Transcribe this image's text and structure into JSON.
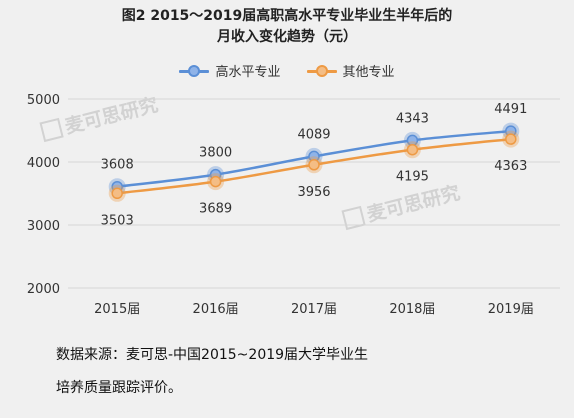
{
  "title_lines": [
    "图2 2015～2019届高职高水平专业毕业生半年后的",
    "月收入变化趋势（元）"
  ],
  "source_lines": [
    "数据来源：麦可思-中国2015~2019届大学毕业生",
    "培养质量跟踪评价。"
  ],
  "watermark": "麦可思研究",
  "colors": {
    "series_a": "#5b8fd6",
    "series_b": "#ee9a44",
    "grid": "#d6d6d6",
    "text": "#333333"
  },
  "chart_data": {
    "type": "line",
    "title": "图2 2015～2019届高职高水平专业毕业生半年后的月收入变化趋势（元）",
    "categories": [
      "2015届",
      "2016届",
      "2017届",
      "2018届",
      "2019届"
    ],
    "series": [
      {
        "name": "高水平专业",
        "values": [
          3608,
          3800,
          4089,
          4343,
          4491
        ]
      },
      {
        "name": "其他专业",
        "values": [
          3503,
          3689,
          3956,
          4195,
          4363
        ]
      }
    ],
    "ylim": [
      2000,
      5000
    ],
    "yticks": [
      2000,
      3000,
      4000,
      5000
    ],
    "xlabel": "",
    "ylabel": "",
    "grid": true,
    "legend": "top-center"
  }
}
